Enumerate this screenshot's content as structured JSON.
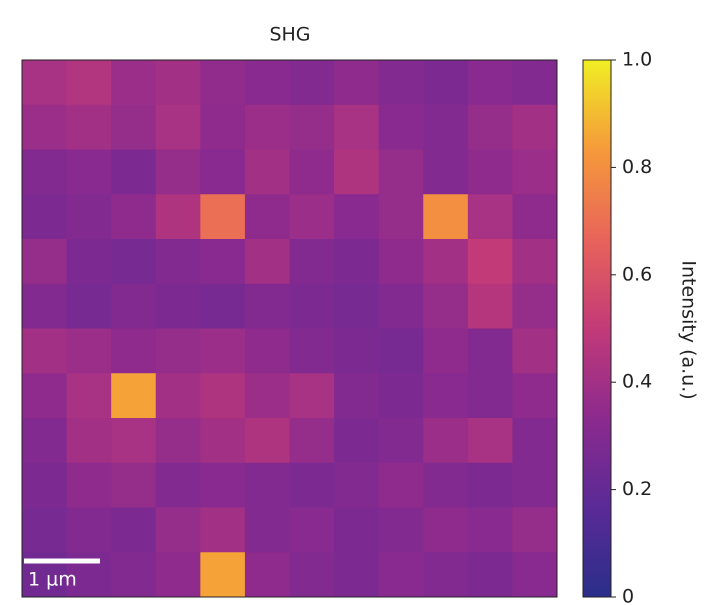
{
  "chart_data": {
    "type": "heatmap",
    "title": "SHG",
    "colorbar_label": "Intensity (a.u.)",
    "scale_bar_label": "1 µm",
    "zlim": [
      0,
      1
    ],
    "zticks": [
      0,
      0.2,
      0.4,
      0.6,
      0.8,
      {
        "value": 1,
        "label": "1.0"
      }
    ],
    "colors": [
      "#2a2e8a",
      "#5a2a96",
      "#8c2a8e",
      "#c23a78",
      "#e8645a",
      "#f59a3a",
      "#f0ee24"
    ],
    "z": [
      [
        0.42,
        0.45,
        0.38,
        0.4,
        0.35,
        0.32,
        0.3,
        0.34,
        0.3,
        0.28,
        0.32,
        0.3
      ],
      [
        0.38,
        0.4,
        0.36,
        0.42,
        0.34,
        0.38,
        0.36,
        0.42,
        0.32,
        0.3,
        0.36,
        0.4
      ],
      [
        0.3,
        0.32,
        0.28,
        0.36,
        0.32,
        0.4,
        0.34,
        0.44,
        0.36,
        0.3,
        0.34,
        0.38
      ],
      [
        0.28,
        0.3,
        0.34,
        0.44,
        0.7,
        0.34,
        0.38,
        0.32,
        0.36,
        0.8,
        0.42,
        0.34
      ],
      [
        0.36,
        0.28,
        0.26,
        0.3,
        0.32,
        0.4,
        0.3,
        0.28,
        0.34,
        0.4,
        0.5,
        0.4
      ],
      [
        0.3,
        0.26,
        0.3,
        0.28,
        0.26,
        0.3,
        0.28,
        0.26,
        0.3,
        0.36,
        0.46,
        0.36
      ],
      [
        0.4,
        0.38,
        0.34,
        0.36,
        0.38,
        0.34,
        0.3,
        0.28,
        0.26,
        0.34,
        0.3,
        0.4
      ],
      [
        0.34,
        0.42,
        0.85,
        0.4,
        0.44,
        0.38,
        0.42,
        0.3,
        0.28,
        0.32,
        0.3,
        0.34
      ],
      [
        0.3,
        0.4,
        0.42,
        0.36,
        0.4,
        0.44,
        0.36,
        0.28,
        0.3,
        0.38,
        0.42,
        0.3
      ],
      [
        0.28,
        0.34,
        0.36,
        0.3,
        0.32,
        0.3,
        0.28,
        0.3,
        0.34,
        0.3,
        0.28,
        0.3
      ],
      [
        0.26,
        0.3,
        0.28,
        0.36,
        0.4,
        0.3,
        0.32,
        0.28,
        0.3,
        0.34,
        0.32,
        0.36
      ],
      [
        0.24,
        0.28,
        0.3,
        0.34,
        0.85,
        0.34,
        0.3,
        0.28,
        0.32,
        0.3,
        0.28,
        0.32
      ]
    ]
  }
}
